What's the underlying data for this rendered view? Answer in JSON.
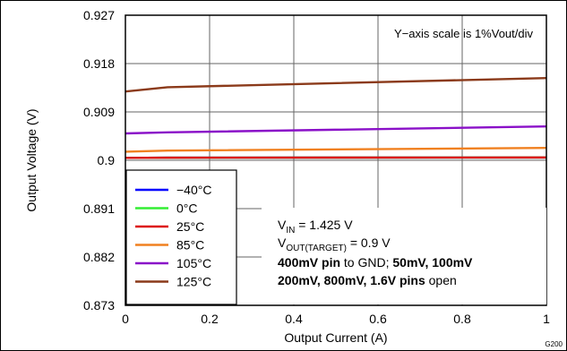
{
  "chart_data": {
    "type": "line",
    "xlabel": "Output Current (A)",
    "ylabel": "Output Voltage (V)",
    "xlim": [
      0,
      1
    ],
    "ylim": [
      0.873,
      0.927
    ],
    "x_ticks": [
      "0",
      "0.2",
      "0.4",
      "0.6",
      "0.8",
      "1"
    ],
    "y_ticks": [
      "0.873",
      "0.882",
      "0.891",
      "0.9",
      "0.909",
      "0.918",
      "0.927"
    ],
    "grid": true,
    "legend_position": "bottom-left",
    "series": [
      {
        "name": "−40°C",
        "color": "#0000ff",
        "x": [
          0,
          0.1,
          1
        ],
        "y": [
          0.90045,
          0.90048,
          0.90052
        ]
      },
      {
        "name": "0°C",
        "color": "#33ee33",
        "x": [
          0,
          0.1,
          1
        ],
        "y": [
          0.90045,
          0.90048,
          0.90052
        ]
      },
      {
        "name": "25°C",
        "color": "#dd1111",
        "x": [
          0,
          0.1,
          1
        ],
        "y": [
          0.90045,
          0.90048,
          0.90052
        ]
      },
      {
        "name": "85°C",
        "color": "#f08020",
        "x": [
          0,
          0.1,
          1
        ],
        "y": [
          0.9016,
          0.9018,
          0.9023
        ]
      },
      {
        "name": "105°C",
        "color": "#8a10c8",
        "x": [
          0,
          0.1,
          1
        ],
        "y": [
          0.905,
          0.9052,
          0.9063
        ]
      },
      {
        "name": "125°C",
        "color": "#8b3a1a",
        "x": [
          0,
          0.1,
          1
        ],
        "y": [
          0.9128,
          0.9136,
          0.9153
        ]
      }
    ],
    "annotations": {
      "scale_note": "Y−axis scale is 1%Vout/div",
      "vin_prefix": "V",
      "vin_sub": "IN",
      "vin_value": " = 1.425 V",
      "vout_prefix": "V",
      "vout_sub": "OUT(TARGET)",
      "vout_value": " = 0.9 V",
      "line3_bold1": "400mV pin",
      "line3_normal": " to GND; ",
      "line3_bold2": "50mV, 100mV",
      "line4_bold": "200mV, 800mV, 1.6V pins",
      "line4_normal": " open"
    },
    "figure_id": "G200"
  }
}
